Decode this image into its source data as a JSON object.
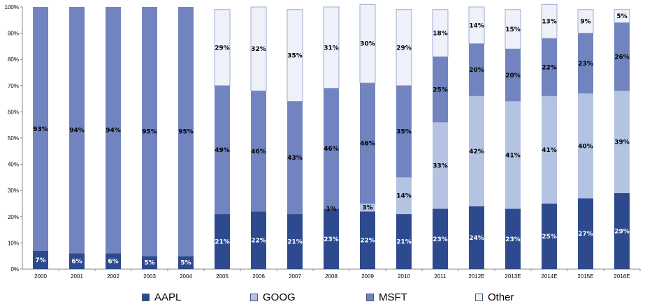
{
  "chart_data": {
    "type": "bar",
    "stacked": true,
    "categories": [
      "2000",
      "2001",
      "2002",
      "2003",
      "2004",
      "2005",
      "2006",
      "2007",
      "2008",
      "2009",
      "2010",
      "2011",
      "2012E",
      "2013E",
      "2014E",
      "2015E",
      "2016E"
    ],
    "series": [
      {
        "name": "AAPL",
        "color": "#2e4a8f",
        "values": [
          7,
          6,
          6,
          5,
          5,
          21,
          22,
          21,
          23,
          22,
          21,
          23,
          24,
          23,
          25,
          27,
          29
        ],
        "labels": [
          "7%",
          "6%",
          "6%",
          "5%",
          "5%",
          "21%",
          "22%",
          "21%",
          "23%",
          "22%",
          "21%",
          "23%",
          "24%",
          "23%",
          "25%",
          "27%",
          "29%"
        ]
      },
      {
        "name": "GOOG",
        "color": "#b5c3e3",
        "values": [
          0,
          0,
          0,
          0,
          0,
          0,
          0,
          0,
          0,
          3,
          14,
          33,
          42,
          41,
          41,
          40,
          39
        ],
        "labels": [
          "",
          "",
          "",
          "",
          "",
          "",
          "",
          "",
          "",
          "3%",
          "14%",
          "33%",
          "42%",
          "41%",
          "41%",
          "40%",
          "39%"
        ]
      },
      {
        "name": "MSFT",
        "color": "#7184bf",
        "values": [
          93,
          94,
          94,
          95,
          95,
          49,
          46,
          43,
          46,
          46,
          35,
          25,
          20,
          20,
          22,
          23,
          26
        ],
        "labels": [
          "93%",
          "94%",
          "94%",
          "95%",
          "95%",
          "49%",
          "46%",
          "43%",
          "46%",
          "46%",
          "35%",
          "25%",
          "20%",
          "20%",
          "22%",
          "23%",
          "26%"
        ]
      },
      {
        "name": "Other",
        "color": "#eef1fa",
        "values": [
          0,
          0,
          0,
          0,
          0,
          29,
          32,
          35,
          31,
          30,
          29,
          18,
          14,
          15,
          13,
          9,
          5
        ],
        "labels": [
          "",
          "",
          "",
          "",
          "",
          "29%",
          "32%",
          "35%",
          "31%",
          "30%",
          "29%",
          "18%",
          "14%",
          "15%",
          "13%",
          "9%",
          "5%"
        ]
      }
    ],
    "gap_label": {
      "category": "2008",
      "text": "1%"
    },
    "y_ticks": [
      "0%",
      "10%",
      "20%",
      "30%",
      "40%",
      "50%",
      "60%",
      "70%",
      "80%",
      "90%",
      "100%"
    ],
    "ylim": [
      0,
      100
    ],
    "legend_position": "bottom"
  }
}
